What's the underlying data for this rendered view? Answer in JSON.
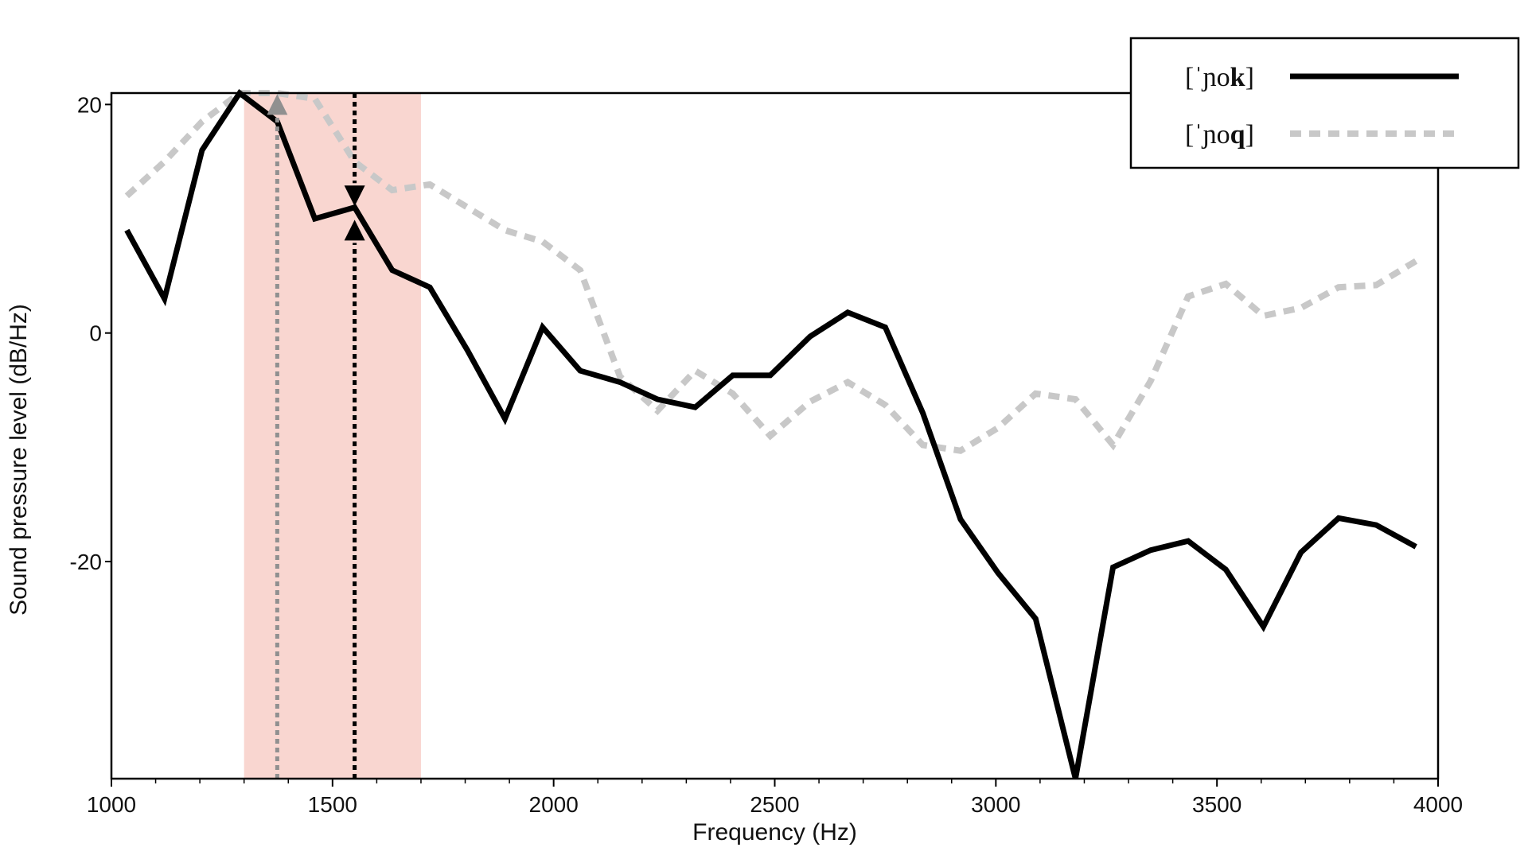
{
  "chart_data": {
    "type": "line",
    "xlabel": "Frequency (Hz)",
    "ylabel": "Sound pressure level (dB/Hz)",
    "xlim": [
      1000,
      4000
    ],
    "ylim": [
      -39,
      21
    ],
    "x_ticks": [
      1000,
      1500,
      2000,
      2500,
      3000,
      3500,
      4000
    ],
    "x_tick_labels": [
      "1000",
      "1500",
      "2000",
      "2500",
      "3000",
      "3500",
      "4000"
    ],
    "y_ticks": [
      20,
      0,
      -20
    ],
    "y_tick_labels": [
      "20",
      "0",
      "-20"
    ],
    "grid": false,
    "legend_position": "top-right",
    "highlight_band": {
      "x_start": 1300,
      "x_end": 1700,
      "color": "#f9d6d0"
    },
    "markers": [
      {
        "name": "noq-peak-marker",
        "x": 1375,
        "y": 20,
        "direction": "up",
        "color": "#909090"
      },
      {
        "name": "nok-peak-marker-top",
        "x": 1550,
        "y": 12,
        "direction": "down",
        "color": "#000000"
      },
      {
        "name": "nok-peak-marker-bottom",
        "x": 1550,
        "y": 9,
        "direction": "up",
        "color": "#000000"
      }
    ],
    "series": [
      {
        "name": "[ˈɲok]",
        "legend_plain": "[ˈɲo",
        "legend_bold": "k",
        "legend_close": "]",
        "style": "solid",
        "color": "#000000",
        "x": [
          1035,
          1120,
          1205,
          1290,
          1375,
          1460,
          1550,
          1635,
          1720,
          1805,
          1890,
          1975,
          2060,
          2150,
          2235,
          2320,
          2405,
          2490,
          2580,
          2665,
          2750,
          2835,
          2920,
          3005,
          3090,
          3180,
          3265,
          3350,
          3435,
          3520,
          3605,
          3690,
          3775,
          3860,
          3950
        ],
        "y": [
          9,
          3,
          16,
          21,
          18.5,
          10,
          11,
          5.5,
          4,
          -1.5,
          -7.5,
          0.5,
          -3.3,
          -4.3,
          -5.8,
          -6.5,
          -3.7,
          -3.7,
          -0.3,
          1.8,
          0.5,
          -7,
          -16.3,
          -21,
          -25,
          -39,
          -20.5,
          -19,
          -18.2,
          -20.7,
          -25.7,
          -19.2,
          -16.2,
          -16.8,
          -18.7
        ]
      },
      {
        "name": "[ˈɲoq]",
        "legend_plain": "[ˈɲo",
        "legend_bold": "q",
        "legend_close": "]",
        "style": "dashed",
        "color": "#c8c8c8",
        "x": [
          1035,
          1120,
          1205,
          1290,
          1375,
          1460,
          1550,
          1635,
          1720,
          1805,
          1890,
          1975,
          2060,
          2150,
          2235,
          2320,
          2405,
          2490,
          2580,
          2665,
          2750,
          2835,
          2920,
          3005,
          3090,
          3180,
          3265,
          3350,
          3435,
          3520,
          3605,
          3690,
          3775,
          3860,
          3950
        ],
        "y": [
          12,
          15,
          18.5,
          21,
          21,
          20.5,
          15,
          12.5,
          13,
          11,
          9,
          8,
          5.5,
          -3.8,
          -6.8,
          -3.3,
          -5.3,
          -9,
          -6,
          -4.3,
          -6.3,
          -9.8,
          -10.3,
          -8.3,
          -5.3,
          -5.8,
          -9.8,
          -4.2,
          3.2,
          4.3,
          1.5,
          2.2,
          4,
          4.2,
          6.3
        ]
      }
    ]
  }
}
